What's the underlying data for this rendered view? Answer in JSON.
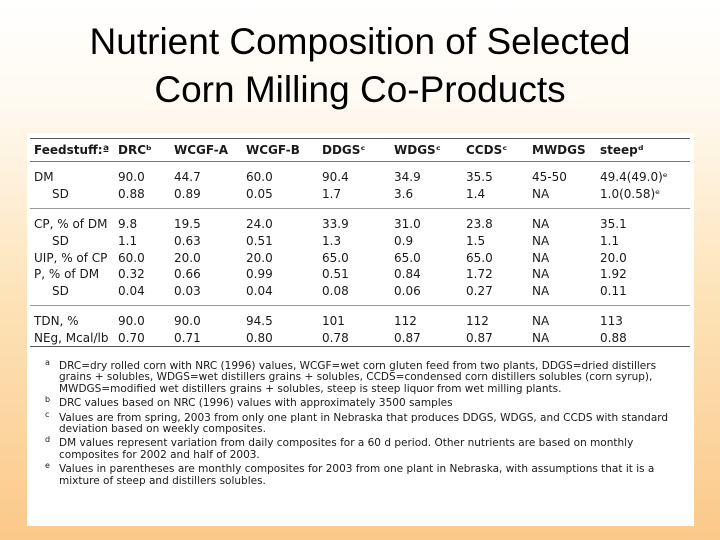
{
  "title": {
    "line1": "Nutrient Composition of Selected",
    "line2": "Corn Milling Co-Products"
  },
  "table": {
    "headers": [
      "Feedstuff:ª",
      "DRCᵇ",
      "WCGF-A",
      "WCGF-B",
      "DDGSᶜ",
      "WDGSᶜ",
      "CCDSᶜ",
      "MWDGS",
      "steepᵈ"
    ],
    "rows": {
      "dm": [
        "DM",
        "90.0",
        "44.7",
        "60.0",
        "90.4",
        "34.9",
        "35.5",
        "45-50",
        "49.4(49.0)ᵉ"
      ],
      "dmsd": [
        "SD",
        "0.88",
        "0.89",
        "0.05",
        "1.7",
        "3.6",
        "1.4",
        "NA",
        "1.0(0.58)ᵉ"
      ],
      "cp": [
        "CP, % of DM",
        "9.8",
        "19.5",
        "24.0",
        "33.9",
        "31.0",
        "23.8",
        "NA",
        "35.1"
      ],
      "cpsd": [
        "SD",
        "1.1",
        "0.63",
        "0.51",
        "1.3",
        "0.9",
        "1.5",
        "NA",
        "1.1"
      ],
      "uip": [
        "UIP, % of CP",
        "60.0",
        "20.0",
        "20.0",
        "65.0",
        "65.0",
        "65.0",
        "NA",
        "20.0"
      ],
      "p": [
        "P, % of DM",
        "0.32",
        "0.66",
        "0.99",
        "0.51",
        "0.84",
        "1.72",
        "NA",
        "1.92"
      ],
      "psd": [
        "SD",
        "0.04",
        "0.03",
        "0.04",
        "0.08",
        "0.06",
        "0.27",
        "NA",
        "0.11"
      ],
      "tdn": [
        "TDN, %",
        "90.0",
        "90.0",
        "94.5",
        "101",
        "112",
        "112",
        "NA",
        "113"
      ],
      "neg": [
        "NEg, Mcal/lb",
        "0.70",
        "0.71",
        "0.80",
        "0.78",
        "0.87",
        "0.87",
        "NA",
        "0.88"
      ]
    }
  },
  "footnotes": [
    {
      "mark": "a",
      "text": "DRC=dry rolled corn with NRC (1996) values, WCGF=wet corn gluten feed from two plants, DDGS=dried distillers grains + solubles, WDGS=wet distillers grains + solubles, CCDS=condensed corn distillers solubles (corn syrup), MWDGS=modified wet distillers grains + solubles, steep is steep liquor from wet milling plants."
    },
    {
      "mark": "b",
      "text": "DRC values based on NRC (1996) values with approximately 3500 samples"
    },
    {
      "mark": "c",
      "text": "Values are from spring, 2003 from only one plant in Nebraska that produces DDGS, WDGS, and CCDS with standard deviation based on weekly composites."
    },
    {
      "mark": "d",
      "text": "DM values represent variation from daily composites for a 60 d period. Other nutrients are based on monthly composites for 2002 and half of 2003."
    },
    {
      "mark": "e",
      "text": "Values in parentheses are monthly composites for 2003 from one plant in Nebraska, with assumptions that it is a mixture of steep and distillers solubles."
    }
  ]
}
